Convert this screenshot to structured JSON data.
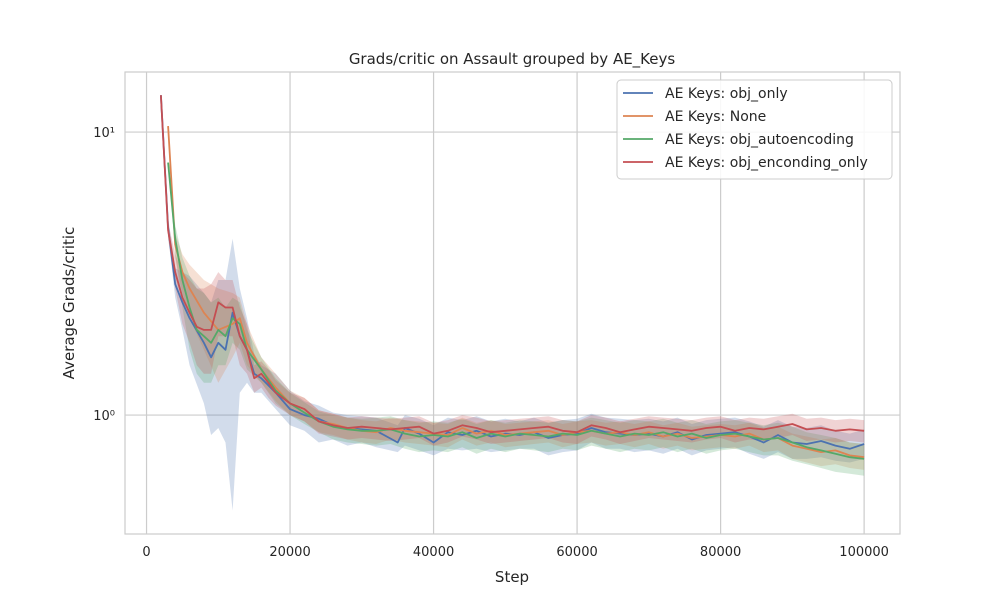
{
  "chart_data": {
    "type": "line",
    "title": "Grads/critic on Assault grouped by AE_Keys",
    "xlabel": "Step",
    "ylabel": "Average Grads/critic",
    "xlim": [
      -3000,
      105000
    ],
    "ylim": [
      0.38,
      16.3
    ],
    "y_scale": "log",
    "grid": true,
    "legend_position": "top-right",
    "x_ticks": [
      0,
      20000,
      40000,
      60000,
      80000,
      100000
    ],
    "x_tick_labels": [
      "0",
      "20000",
      "40000",
      "60000",
      "80000",
      "100000"
    ],
    "y_ticks": [
      1,
      10
    ],
    "y_tick_labels": [
      "10⁰",
      "10¹"
    ],
    "series": [
      {
        "name": "AE Keys: obj_only",
        "color": "#4c72b0",
        "x": [
          2000,
          3000,
          4000,
          5000,
          6000,
          8000,
          9000,
          10000,
          11000,
          12000,
          13000,
          14000,
          15000,
          16000,
          18000,
          20000,
          22000,
          24000,
          26000,
          28000,
          30000,
          32000,
          35000,
          36000,
          38000,
          40000,
          42000,
          44000,
          46000,
          48000,
          50000,
          52000,
          54000,
          56000,
          58000,
          60000,
          62000,
          64000,
          66000,
          68000,
          70000,
          72000,
          74000,
          76000,
          78000,
          80000,
          82000,
          84000,
          86000,
          88000,
          90000,
          92000,
          94000,
          96000,
          98000,
          100000
        ],
        "values": [
          13.5,
          4.6,
          2.9,
          2.5,
          2.2,
          1.8,
          1.6,
          1.8,
          1.7,
          2.3,
          1.9,
          1.7,
          1.4,
          1.35,
          1.2,
          1.05,
          1.0,
          0.97,
          0.92,
          0.9,
          0.89,
          0.88,
          0.8,
          0.9,
          0.86,
          0.8,
          0.87,
          0.85,
          0.88,
          0.84,
          0.86,
          0.85,
          0.87,
          0.83,
          0.85,
          0.86,
          0.9,
          0.87,
          0.86,
          0.85,
          0.86,
          0.84,
          0.87,
          0.82,
          0.85,
          0.86,
          0.87,
          0.84,
          0.8,
          0.85,
          0.8,
          0.79,
          0.81,
          0.78,
          0.76,
          0.79
        ],
        "band_low": [
          13.5,
          4.3,
          2.6,
          2.0,
          1.5,
          1.1,
          0.85,
          0.9,
          0.8,
          0.46,
          1.2,
          1.3,
          1.2,
          1.2,
          1.05,
          0.92,
          0.88,
          0.8,
          0.82,
          0.78,
          0.8,
          0.77,
          0.74,
          0.78,
          0.75,
          0.72,
          0.76,
          0.75,
          0.76,
          0.74,
          0.75,
          0.76,
          0.76,
          0.72,
          0.74,
          0.75,
          0.8,
          0.76,
          0.76,
          0.74,
          0.75,
          0.73,
          0.76,
          0.72,
          0.75,
          0.76,
          0.77,
          0.73,
          0.7,
          0.74,
          0.7,
          0.7,
          0.71,
          0.69,
          0.68,
          0.7
        ],
        "band_high": [
          13.5,
          5.0,
          3.3,
          3.2,
          3.1,
          2.7,
          2.5,
          3.0,
          3.0,
          4.2,
          2.8,
          2.2,
          1.65,
          1.5,
          1.4,
          1.22,
          1.12,
          1.08,
          1.02,
          1.0,
          0.99,
          0.98,
          0.92,
          1.0,
          0.97,
          0.92,
          0.98,
          0.96,
          0.99,
          0.95,
          0.97,
          0.95,
          0.98,
          0.94,
          0.96,
          0.97,
          1.01,
          0.98,
          0.97,
          0.96,
          0.97,
          0.95,
          0.98,
          0.93,
          0.96,
          0.97,
          0.98,
          0.95,
          0.91,
          0.96,
          0.91,
          0.9,
          0.92,
          0.88,
          0.86,
          0.89
        ]
      },
      {
        "name": "AE Keys: None",
        "color": "#dd8452",
        "x": [
          3000,
          4000,
          5000,
          6000,
          8000,
          10000,
          12000,
          13000,
          14000,
          16000,
          18000,
          20000,
          22000,
          24000,
          26000,
          28000,
          30000,
          32000,
          34000,
          36000,
          38000,
          40000,
          42000,
          44000,
          46000,
          48000,
          50000,
          52000,
          54000,
          56000,
          58000,
          60000,
          62000,
          64000,
          66000,
          68000,
          70000,
          72000,
          74000,
          76000,
          78000,
          80000,
          82000,
          84000,
          86000,
          88000,
          90000,
          92000,
          94000,
          96000,
          98000,
          100000
        ],
        "values": [
          10.5,
          4.0,
          3.2,
          2.8,
          2.3,
          2.0,
          2.1,
          2.2,
          1.8,
          1.45,
          1.25,
          1.1,
          1.05,
          0.95,
          0.93,
          0.9,
          0.88,
          0.87,
          0.9,
          0.88,
          0.87,
          0.86,
          0.85,
          0.9,
          0.86,
          0.88,
          0.85,
          0.86,
          0.87,
          0.88,
          0.85,
          0.87,
          0.88,
          0.86,
          0.87,
          0.85,
          0.87,
          0.84,
          0.86,
          0.83,
          0.84,
          0.85,
          0.84,
          0.86,
          0.82,
          0.83,
          0.78,
          0.76,
          0.74,
          0.75,
          0.72,
          0.71
        ],
        "band_low": [
          10.5,
          3.6,
          2.7,
          2.2,
          1.7,
          1.3,
          1.6,
          1.8,
          1.5,
          1.3,
          1.12,
          1.0,
          0.95,
          0.87,
          0.85,
          0.82,
          0.8,
          0.79,
          0.82,
          0.8,
          0.79,
          0.78,
          0.77,
          0.82,
          0.78,
          0.8,
          0.77,
          0.78,
          0.79,
          0.8,
          0.77,
          0.79,
          0.8,
          0.78,
          0.79,
          0.77,
          0.79,
          0.76,
          0.78,
          0.75,
          0.76,
          0.77,
          0.76,
          0.78,
          0.74,
          0.75,
          0.7,
          0.68,
          0.66,
          0.67,
          0.65,
          0.64
        ],
        "band_high": [
          10.5,
          4.4,
          3.7,
          3.4,
          3.0,
          2.8,
          2.7,
          2.6,
          2.1,
          1.6,
          1.4,
          1.22,
          1.15,
          1.04,
          1.01,
          0.98,
          0.96,
          0.95,
          0.98,
          0.96,
          0.95,
          0.94,
          0.93,
          0.98,
          0.94,
          0.96,
          0.93,
          0.94,
          0.95,
          0.96,
          0.93,
          0.95,
          0.96,
          0.94,
          0.95,
          0.93,
          0.95,
          0.92,
          0.94,
          0.91,
          0.92,
          0.93,
          0.92,
          0.94,
          0.9,
          0.91,
          0.86,
          0.84,
          0.82,
          0.83,
          0.8,
          0.79
        ]
      },
      {
        "name": "AE Keys: obj_autoencoding",
        "color": "#55a868",
        "x": [
          3000,
          4000,
          5000,
          6000,
          7000,
          8000,
          9000,
          10000,
          11000,
          12000,
          13000,
          14000,
          16000,
          18000,
          20000,
          22000,
          24000,
          26000,
          28000,
          30000,
          32000,
          34000,
          36000,
          38000,
          40000,
          42000,
          44000,
          46000,
          48000,
          50000,
          52000,
          54000,
          56000,
          58000,
          60000,
          62000,
          64000,
          66000,
          68000,
          70000,
          72000,
          74000,
          76000,
          78000,
          80000,
          82000,
          84000,
          86000,
          88000,
          90000,
          92000,
          94000,
          96000,
          98000,
          100000
        ],
        "values": [
          7.8,
          4.2,
          3.0,
          2.4,
          2.0,
          1.9,
          1.8,
          2.0,
          1.9,
          2.2,
          2.1,
          1.7,
          1.45,
          1.22,
          1.1,
          1.02,
          0.95,
          0.91,
          0.89,
          0.88,
          0.88,
          0.89,
          0.86,
          0.84,
          0.85,
          0.84,
          0.87,
          0.83,
          0.86,
          0.84,
          0.86,
          0.85,
          0.84,
          0.86,
          0.85,
          0.88,
          0.86,
          0.84,
          0.86,
          0.85,
          0.87,
          0.84,
          0.86,
          0.83,
          0.85,
          0.86,
          0.84,
          0.82,
          0.83,
          0.8,
          0.77,
          0.75,
          0.73,
          0.71,
          0.7
        ],
        "band_low": [
          7.8,
          3.7,
          2.4,
          1.7,
          1.4,
          1.3,
          1.3,
          1.5,
          1.5,
          1.8,
          1.7,
          1.45,
          1.3,
          1.1,
          1.0,
          0.93,
          0.87,
          0.82,
          0.8,
          0.79,
          0.78,
          0.79,
          0.76,
          0.74,
          0.75,
          0.74,
          0.77,
          0.73,
          0.76,
          0.74,
          0.76,
          0.75,
          0.74,
          0.76,
          0.75,
          0.78,
          0.76,
          0.74,
          0.76,
          0.75,
          0.77,
          0.74,
          0.76,
          0.73,
          0.75,
          0.76,
          0.74,
          0.72,
          0.72,
          0.69,
          0.67,
          0.65,
          0.63,
          0.62,
          0.61
        ],
        "band_high": [
          7.8,
          4.7,
          3.6,
          3.1,
          2.8,
          2.7,
          2.5,
          2.6,
          2.4,
          2.6,
          2.5,
          2.0,
          1.6,
          1.35,
          1.2,
          1.11,
          1.03,
          1.0,
          0.98,
          0.97,
          0.98,
          0.99,
          0.96,
          0.94,
          0.95,
          0.94,
          0.97,
          0.93,
          0.96,
          0.94,
          0.96,
          0.95,
          0.94,
          0.96,
          0.95,
          0.98,
          0.96,
          0.94,
          0.96,
          0.95,
          0.97,
          0.94,
          0.96,
          0.93,
          0.95,
          0.96,
          0.94,
          0.92,
          0.94,
          0.91,
          0.87,
          0.85,
          0.83,
          0.8,
          0.79
        ]
      },
      {
        "name": "AE Keys: obj_enconding_only",
        "color": "#c44e52",
        "x": [
          2000,
          3000,
          4000,
          5000,
          6000,
          7000,
          8000,
          9000,
          10000,
          11000,
          12000,
          13000,
          14000,
          15000,
          16000,
          17000,
          18000,
          20000,
          22000,
          24000,
          26000,
          28000,
          30000,
          32000,
          34000,
          36000,
          38000,
          40000,
          42000,
          44000,
          46000,
          48000,
          50000,
          52000,
          54000,
          56000,
          58000,
          60000,
          62000,
          64000,
          66000,
          68000,
          70000,
          72000,
          74000,
          76000,
          78000,
          80000,
          82000,
          84000,
          86000,
          88000,
          90000,
          92000,
          94000,
          96000,
          98000,
          100000
        ],
        "values": [
          13.5,
          4.5,
          3.2,
          2.6,
          2.3,
          2.05,
          2.0,
          2.0,
          2.5,
          2.4,
          2.4,
          1.9,
          1.7,
          1.35,
          1.4,
          1.3,
          1.2,
          1.1,
          1.05,
          0.95,
          0.92,
          0.9,
          0.91,
          0.9,
          0.89,
          0.9,
          0.91,
          0.86,
          0.88,
          0.92,
          0.9,
          0.87,
          0.88,
          0.89,
          0.9,
          0.91,
          0.88,
          0.87,
          0.92,
          0.9,
          0.87,
          0.89,
          0.91,
          0.9,
          0.89,
          0.88,
          0.9,
          0.91,
          0.88,
          0.9,
          0.89,
          0.91,
          0.93,
          0.89,
          0.9,
          0.88,
          0.89,
          0.88
        ],
        "band_low": [
          13.5,
          4.2,
          2.8,
          2.1,
          1.8,
          1.5,
          1.4,
          1.4,
          1.9,
          1.9,
          1.9,
          1.5,
          1.4,
          1.2,
          1.25,
          1.15,
          1.08,
          1.0,
          0.95,
          0.86,
          0.84,
          0.82,
          0.83,
          0.82,
          0.81,
          0.82,
          0.83,
          0.78,
          0.8,
          0.84,
          0.82,
          0.79,
          0.8,
          0.81,
          0.82,
          0.83,
          0.8,
          0.79,
          0.84,
          0.82,
          0.79,
          0.81,
          0.83,
          0.82,
          0.81,
          0.8,
          0.82,
          0.83,
          0.8,
          0.82,
          0.81,
          0.83,
          0.85,
          0.81,
          0.82,
          0.8,
          0.81,
          0.8
        ],
        "band_high": [
          13.5,
          4.8,
          3.7,
          3.2,
          3.0,
          2.8,
          2.8,
          2.9,
          3.2,
          3.0,
          3.0,
          2.4,
          2.1,
          1.5,
          1.55,
          1.45,
          1.33,
          1.2,
          1.15,
          1.04,
          1.01,
          0.98,
          0.99,
          0.98,
          0.97,
          0.98,
          0.99,
          0.94,
          0.96,
          1.0,
          0.98,
          0.95,
          0.96,
          0.97,
          0.98,
          0.99,
          0.96,
          0.95,
          1.0,
          0.98,
          0.95,
          0.97,
          0.99,
          0.98,
          0.97,
          0.96,
          0.98,
          0.99,
          0.96,
          0.98,
          0.97,
          0.99,
          1.01,
          0.97,
          0.98,
          0.96,
          0.97,
          0.96
        ]
      }
    ]
  }
}
